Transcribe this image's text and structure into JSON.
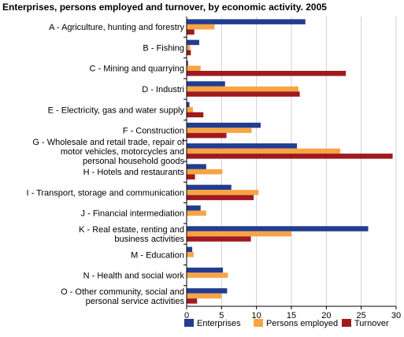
{
  "chart_data": {
    "type": "bar",
    "orientation": "horizontal",
    "title": "Enterprises, persons employed and turnover, by economic activity. 2005",
    "xlabel": "",
    "ylabel": "",
    "xlim": [
      0,
      30
    ],
    "xticks": [
      "0",
      "5",
      "10",
      "15",
      "20",
      "25",
      "30"
    ],
    "grid": true,
    "legend_position": "bottom",
    "categories": [
      [
        "A - Agriculture, hunting and forestry"
      ],
      [
        "B - Fishing"
      ],
      [
        "C -  Mining and quarrying"
      ],
      [
        "D - Industri"
      ],
      [
        "E - Electricity, gas and water supply"
      ],
      [
        "F - Construction"
      ],
      [
        "G - Wholesale and retail trade, repair of",
        "motor vehicles, motorcycles and",
        "personal household goods"
      ],
      [
        "H - Hotels and restaurants"
      ],
      [
        "I - Transport, storage and communication"
      ],
      [
        "J - Financial intermediation"
      ],
      [
        "K - Real estate, renting and",
        "business activities"
      ],
      [
        "M - Education"
      ],
      [
        "N - Health and social work"
      ],
      [
        "O - Other community, social  and",
        "personal service activities"
      ]
    ],
    "series": [
      {
        "name": "Enterprises",
        "color": "#223d8f",
        "values": [
          17,
          1.8,
          0.2,
          5.5,
          0.4,
          10.6,
          15.8,
          2.8,
          6.4,
          2.0,
          26.0,
          0.8,
          5.2,
          5.8
        ]
      },
      {
        "name": "Persons employed",
        "color": "#f7a444",
        "values": [
          4.0,
          0.5,
          2.0,
          16.0,
          0.9,
          9.3,
          22.0,
          5.1,
          10.3,
          2.8,
          15.0,
          1.0,
          5.9,
          5.0
        ]
      },
      {
        "name": "Turnover",
        "color": "#9e1a1e",
        "values": [
          1.1,
          0.6,
          22.8,
          16.2,
          2.4,
          5.7,
          29.5,
          1.2,
          9.6,
          0.0,
          9.2,
          0.0,
          0.0,
          1.5
        ]
      }
    ]
  }
}
